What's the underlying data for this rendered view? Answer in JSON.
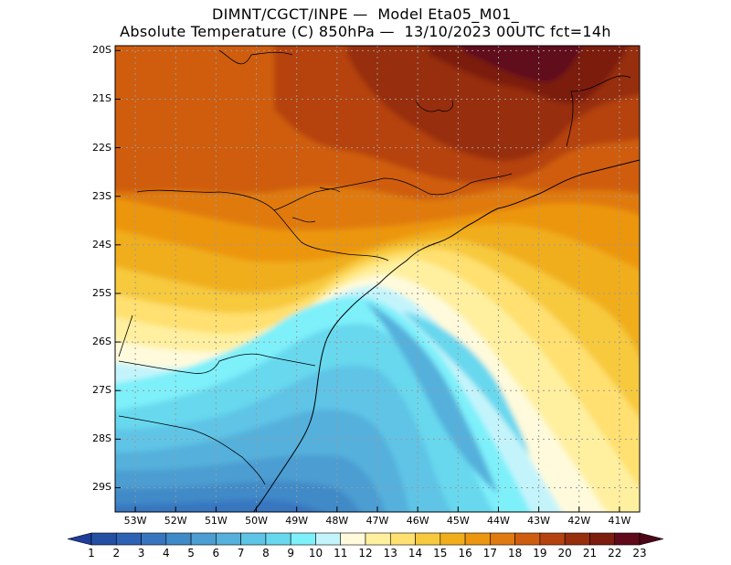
{
  "title": {
    "line1": "DIMNT/CGCT/INPE —  Model Eta05_M01_",
    "line2": "Absolute Temperature (C) 850hPa —  13/10/2023 00UTC fct=14h"
  },
  "lat_labels": [
    "20S",
    "21S",
    "22S",
    "23S",
    "24S",
    "25S",
    "26S",
    "27S",
    "28S",
    "29S"
  ],
  "lon_labels": [
    "53W",
    "52W",
    "51W",
    "50W",
    "49W",
    "48W",
    "47W",
    "46W",
    "45W",
    "44W",
    "43W",
    "42W",
    "41W"
  ],
  "colorbar": {
    "labels": [
      "1",
      "2",
      "3",
      "4",
      "5",
      "6",
      "7",
      "8",
      "9",
      "10",
      "11",
      "12",
      "13",
      "14",
      "15",
      "16",
      "17",
      "18",
      "19",
      "20",
      "21",
      "22",
      "23"
    ],
    "colors": [
      "#1f3d99",
      "#2450a4",
      "#2d62b4",
      "#3776bf",
      "#418ac8",
      "#4b9dd2",
      "#55b0dc",
      "#5ec4e6",
      "#68d8ee",
      "#7ef0fa",
      "#c4f4fb",
      "#fffadb",
      "#fff0a0",
      "#ffe070",
      "#f7c93e",
      "#f0ae1c",
      "#ec960f",
      "#e07a10",
      "#cf5d10",
      "#b6430f",
      "#972e0c",
      "#7c1d0f",
      "#600a1c",
      "#4d0617"
    ]
  },
  "map_data": {
    "lon_range": [
      -53.5,
      -40.5
    ],
    "lat_range": [
      -29.5,
      -19.9
    ]
  }
}
